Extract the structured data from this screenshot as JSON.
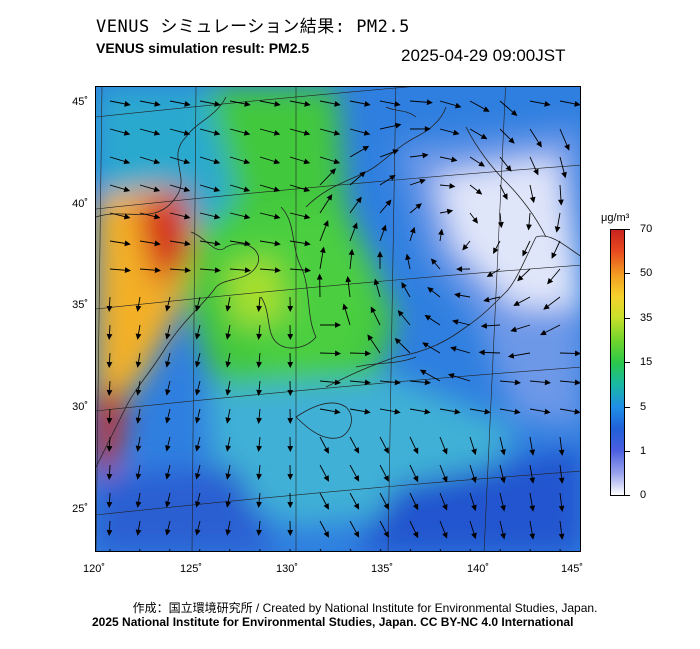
{
  "header": {
    "title_jp": "VENUS シミュレーション結果: PM2.5",
    "title_en": "VENUS simulation result: PM2.5",
    "timestamp": "2025-04-29 09:00JST"
  },
  "axes": {
    "lat_labels": [
      "45˚",
      "40˚",
      "35˚",
      "30˚",
      "25˚"
    ],
    "lon_labels": [
      "120˚",
      "125˚",
      "130˚",
      "135˚",
      "140˚",
      "145˚"
    ]
  },
  "colorbar": {
    "unit": "μg/m³",
    "tick_labels": [
      "70",
      "50",
      "35",
      "15",
      "5",
      "1",
      "0"
    ],
    "colors": [
      "#c8231e",
      "#f29e22",
      "#6ed42c",
      "#19b9a2",
      "#2160d8",
      "#9aa4ec",
      "#ffffff"
    ]
  },
  "footer": {
    "credit_line": "作成：国立環境研究所 / Created by National Institute for Environmental Studies, Japan.",
    "license_line": "2025 National Institute for Environmental Studies, Japan. CC BY-NC 4.0 International"
  },
  "map_colors": {
    "high": "#d42a1c",
    "mid": "#39c83e",
    "low": "#2366d8",
    "clean": "#e8ecfb"
  }
}
